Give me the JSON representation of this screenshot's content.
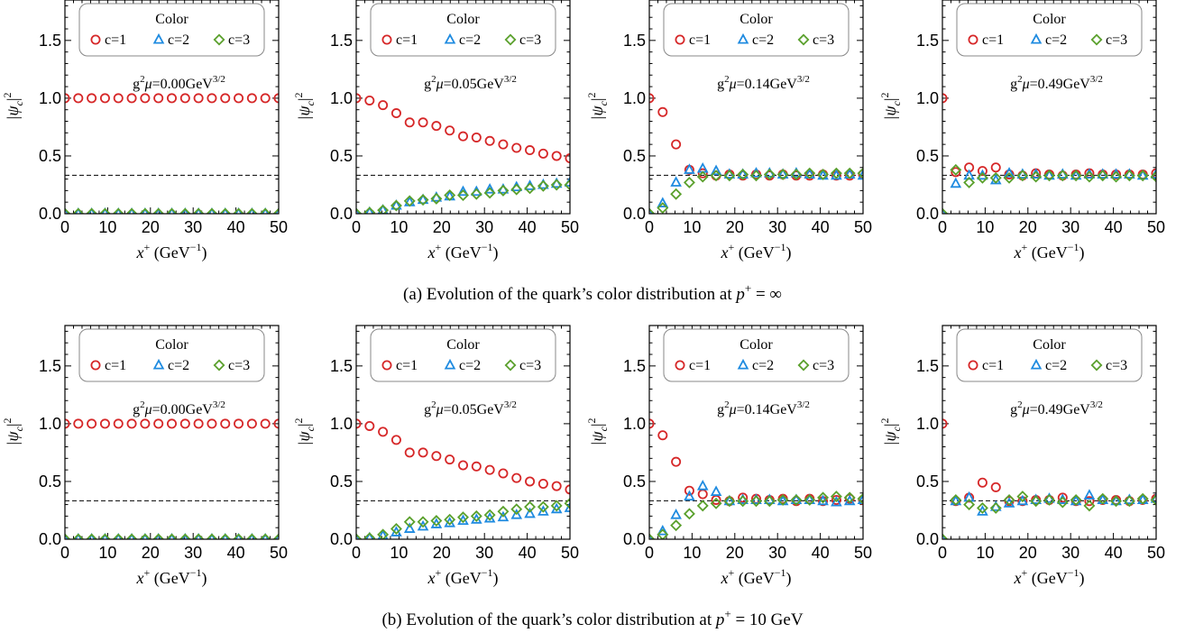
{
  "chart_data": [
    {
      "type": "scatter",
      "row": 0,
      "annotation": {
        "base": "g",
        "exp1": "2",
        "mu": "μ",
        "value": "=0.00GeV",
        "exp2": "3/2"
      },
      "xlabel": {
        "var": "x",
        "sup": "+",
        "unit": " (GeV",
        "unit_sup": "−1",
        "close": ")"
      },
      "ylabel": {
        "text": "|ψ",
        "sub": "c",
        "close": "|",
        "sup": "2"
      },
      "xlim": [
        0,
        50
      ],
      "ylim": [
        0,
        1.85
      ],
      "xticks": [
        "0",
        "10",
        "20",
        "30",
        "40",
        "50"
      ],
      "yticks": [
        "0.0",
        "0.5",
        "1.0",
        "1.5"
      ],
      "reference_line": 0.333,
      "x": [
        0,
        3.125,
        6.25,
        9.375,
        12.5,
        15.625,
        18.75,
        21.875,
        25,
        28.125,
        31.25,
        34.375,
        37.5,
        40.625,
        43.75,
        46.875,
        50
      ],
      "series": [
        {
          "name": "c=1",
          "marker": "circle",
          "color": "#d62728",
          "values": [
            1,
            1,
            1,
            1,
            1,
            1,
            1,
            1,
            1,
            1,
            1,
            1,
            1,
            1,
            1,
            1,
            1
          ]
        },
        {
          "name": "c=2",
          "marker": "triangle",
          "color": "#1f8be0",
          "values": [
            0,
            0,
            0,
            0,
            0,
            0,
            0,
            0,
            0,
            0,
            0,
            0,
            0,
            0,
            0,
            0,
            0
          ]
        },
        {
          "name": "c=3",
          "marker": "diamond",
          "color": "#5aa02c",
          "values": [
            0,
            0,
            0,
            0,
            0,
            0,
            0,
            0,
            0,
            0,
            0,
            0,
            0,
            0,
            0,
            0,
            0
          ]
        }
      ]
    },
    {
      "type": "scatter",
      "row": 0,
      "annotation": {
        "base": "g",
        "exp1": "2",
        "mu": "μ",
        "value": "=0.05GeV",
        "exp2": "3/2"
      },
      "xlabel": {
        "var": "x",
        "sup": "+",
        "unit": " (GeV",
        "unit_sup": "−1",
        "close": ")"
      },
      "ylabel": {
        "text": "|ψ",
        "sub": "c",
        "close": "|",
        "sup": "2"
      },
      "xlim": [
        0,
        50
      ],
      "ylim": [
        0,
        1.85
      ],
      "xticks": [
        "0",
        "10",
        "20",
        "30",
        "40",
        "50"
      ],
      "yticks": [
        "0.0",
        "0.5",
        "1.0",
        "1.5"
      ],
      "reference_line": 0.333,
      "x": [
        0,
        3.125,
        6.25,
        9.375,
        12.5,
        15.625,
        18.75,
        21.875,
        25,
        28.125,
        31.25,
        34.375,
        37.5,
        40.625,
        43.75,
        46.875,
        50
      ],
      "series": [
        {
          "name": "c=1",
          "marker": "circle",
          "color": "#d62728",
          "values": [
            1.0,
            0.98,
            0.94,
            0.87,
            0.79,
            0.79,
            0.76,
            0.72,
            0.67,
            0.66,
            0.63,
            0.6,
            0.57,
            0.55,
            0.52,
            0.5,
            0.48
          ]
        },
        {
          "name": "c=2",
          "marker": "triangle",
          "color": "#1f8be0",
          "values": [
            0.0,
            0.01,
            0.03,
            0.07,
            0.1,
            0.12,
            0.14,
            0.15,
            0.19,
            0.19,
            0.21,
            0.21,
            0.23,
            0.24,
            0.25,
            0.26,
            0.27
          ]
        },
        {
          "name": "c=3",
          "marker": "diamond",
          "color": "#5aa02c",
          "values": [
            0.0,
            0.01,
            0.03,
            0.07,
            0.11,
            0.12,
            0.13,
            0.16,
            0.16,
            0.17,
            0.18,
            0.2,
            0.21,
            0.22,
            0.24,
            0.25,
            0.25
          ]
        }
      ]
    },
    {
      "type": "scatter",
      "row": 0,
      "annotation": {
        "base": "g",
        "exp1": "2",
        "mu": "μ",
        "value": "=0.14GeV",
        "exp2": "3/2"
      },
      "xlabel": {
        "var": "x",
        "sup": "+",
        "unit": " (GeV",
        "unit_sup": "−1",
        "close": ")"
      },
      "ylabel": {
        "text": "|ψ",
        "sub": "c",
        "close": "|",
        "sup": "2"
      },
      "xlim": [
        0,
        50
      ],
      "ylim": [
        0,
        1.85
      ],
      "xticks": [
        "0",
        "10",
        "20",
        "30",
        "40",
        "50"
      ],
      "yticks": [
        "0.0",
        "0.5",
        "1.0",
        "1.5"
      ],
      "reference_line": 0.333,
      "x": [
        0,
        3.125,
        6.25,
        9.375,
        12.5,
        15.625,
        18.75,
        21.875,
        25,
        28.125,
        31.25,
        34.375,
        37.5,
        40.625,
        43.75,
        46.875,
        50
      ],
      "series": [
        {
          "name": "c=1",
          "marker": "circle",
          "color": "#d62728",
          "values": [
            1.0,
            0.88,
            0.6,
            0.38,
            0.35,
            0.33,
            0.34,
            0.33,
            0.34,
            0.33,
            0.34,
            0.33,
            0.33,
            0.34,
            0.33,
            0.33,
            0.34
          ]
        },
        {
          "name": "c=2",
          "marker": "triangle",
          "color": "#1f8be0",
          "values": [
            0.0,
            0.09,
            0.27,
            0.38,
            0.39,
            0.37,
            0.34,
            0.34,
            0.35,
            0.35,
            0.34,
            0.35,
            0.34,
            0.33,
            0.33,
            0.34,
            0.33
          ]
        },
        {
          "name": "c=3",
          "marker": "diamond",
          "color": "#5aa02c",
          "values": [
            0.0,
            0.05,
            0.17,
            0.27,
            0.32,
            0.33,
            0.33,
            0.34,
            0.33,
            0.34,
            0.34,
            0.34,
            0.35,
            0.34,
            0.35,
            0.35,
            0.35
          ]
        }
      ]
    },
    {
      "type": "scatter",
      "row": 0,
      "annotation": {
        "base": "g",
        "exp1": "2",
        "mu": "μ",
        "value": "=0.49GeV",
        "exp2": "3/2"
      },
      "xlabel": {
        "var": "x",
        "sup": "+",
        "unit": " (GeV",
        "unit_sup": "−1",
        "close": ")"
      },
      "ylabel": {
        "text": "|ψ",
        "sub": "c",
        "close": "|",
        "sup": "2"
      },
      "xlim": [
        0,
        50
      ],
      "ylim": [
        0,
        1.85
      ],
      "xticks": [
        "0",
        "10",
        "20",
        "30",
        "40",
        "50"
      ],
      "yticks": [
        "0.0",
        "0.5",
        "1.0",
        "1.5"
      ],
      "reference_line": 0.333,
      "x": [
        0,
        3.125,
        6.25,
        9.375,
        12.5,
        15.625,
        18.75,
        21.875,
        25,
        28.125,
        31.25,
        34.375,
        37.5,
        40.625,
        43.75,
        46.875,
        50
      ],
      "series": [
        {
          "name": "c=1",
          "marker": "circle",
          "color": "#d62728",
          "values": [
            1.0,
            0.36,
            0.4,
            0.37,
            0.4,
            0.34,
            0.33,
            0.35,
            0.34,
            0.33,
            0.34,
            0.35,
            0.34,
            0.34,
            0.34,
            0.34,
            0.35
          ]
        },
        {
          "name": "c=2",
          "marker": "triangle",
          "color": "#1f8be0",
          "values": [
            0.0,
            0.26,
            0.33,
            0.33,
            0.29,
            0.35,
            0.34,
            0.34,
            0.33,
            0.34,
            0.33,
            0.34,
            0.34,
            0.34,
            0.34,
            0.33,
            0.34
          ]
        },
        {
          "name": "c=3",
          "marker": "diamond",
          "color": "#5aa02c",
          "values": [
            0.0,
            0.38,
            0.27,
            0.31,
            0.31,
            0.31,
            0.33,
            0.32,
            0.33,
            0.33,
            0.33,
            0.32,
            0.33,
            0.32,
            0.33,
            0.33,
            0.32
          ]
        }
      ]
    },
    {
      "type": "scatter",
      "row": 1,
      "annotation": {
        "base": "g",
        "exp1": "2",
        "mu": "μ",
        "value": "=0.00GeV",
        "exp2": "3/2"
      },
      "xlabel": {
        "var": "x",
        "sup": "+",
        "unit": " (GeV",
        "unit_sup": "−1",
        "close": ")"
      },
      "ylabel": {
        "text": "|ψ",
        "sub": "c",
        "close": "|",
        "sup": "2"
      },
      "xlim": [
        0,
        50
      ],
      "ylim": [
        0,
        1.85
      ],
      "xticks": [
        "0",
        "10",
        "20",
        "30",
        "40",
        "50"
      ],
      "yticks": [
        "0.0",
        "0.5",
        "1.0",
        "1.5"
      ],
      "reference_line": 0.333,
      "x": [
        0,
        3.125,
        6.25,
        9.375,
        12.5,
        15.625,
        18.75,
        21.875,
        25,
        28.125,
        31.25,
        34.375,
        37.5,
        40.625,
        43.75,
        46.875,
        50
      ],
      "series": [
        {
          "name": "c=1",
          "marker": "circle",
          "color": "#d62728",
          "values": [
            1,
            1,
            1,
            1,
            1,
            1,
            1,
            1,
            1,
            1,
            1,
            1,
            1,
            1,
            1,
            1,
            1
          ]
        },
        {
          "name": "c=2",
          "marker": "triangle",
          "color": "#1f8be0",
          "values": [
            0,
            0,
            0,
            0,
            0,
            0,
            0,
            0,
            0,
            0,
            0,
            0,
            0,
            0,
            0,
            0,
            0
          ]
        },
        {
          "name": "c=3",
          "marker": "diamond",
          "color": "#5aa02c",
          "values": [
            0,
            0,
            0,
            0,
            0,
            0,
            0,
            0,
            0,
            0,
            0,
            0,
            0,
            0,
            0,
            0,
            0
          ]
        }
      ]
    },
    {
      "type": "scatter",
      "row": 1,
      "annotation": {
        "base": "g",
        "exp1": "2",
        "mu": "μ",
        "value": "=0.05GeV",
        "exp2": "3/2"
      },
      "xlabel": {
        "var": "x",
        "sup": "+",
        "unit": " (GeV",
        "unit_sup": "−1",
        "close": ")"
      },
      "ylabel": {
        "text": "|ψ",
        "sub": "c",
        "close": "|",
        "sup": "2"
      },
      "xlim": [
        0,
        50
      ],
      "ylim": [
        0,
        1.85
      ],
      "xticks": [
        "0",
        "10",
        "20",
        "30",
        "40",
        "50"
      ],
      "yticks": [
        "0.0",
        "0.5",
        "1.0",
        "1.5"
      ],
      "reference_line": 0.333,
      "x": [
        0,
        3.125,
        6.25,
        9.375,
        12.5,
        15.625,
        18.75,
        21.875,
        25,
        28.125,
        31.25,
        34.375,
        37.5,
        40.625,
        43.75,
        46.875,
        50
      ],
      "series": [
        {
          "name": "c=1",
          "marker": "circle",
          "color": "#d62728",
          "values": [
            1.0,
            0.98,
            0.93,
            0.86,
            0.75,
            0.75,
            0.72,
            0.69,
            0.64,
            0.63,
            0.6,
            0.57,
            0.53,
            0.5,
            0.48,
            0.46,
            0.43
          ]
        },
        {
          "name": "c=2",
          "marker": "triangle",
          "color": "#1f8be0",
          "values": [
            0.0,
            0.01,
            0.03,
            0.06,
            0.09,
            0.11,
            0.13,
            0.14,
            0.16,
            0.17,
            0.18,
            0.19,
            0.21,
            0.22,
            0.24,
            0.26,
            0.27
          ]
        },
        {
          "name": "c=3",
          "marker": "diamond",
          "color": "#5aa02c",
          "values": [
            0.0,
            0.01,
            0.04,
            0.09,
            0.15,
            0.15,
            0.16,
            0.17,
            0.19,
            0.2,
            0.21,
            0.24,
            0.26,
            0.28,
            0.28,
            0.29,
            0.31
          ]
        }
      ]
    },
    {
      "type": "scatter",
      "row": 1,
      "annotation": {
        "base": "g",
        "exp1": "2",
        "mu": "μ",
        "value": "=0.14GeV",
        "exp2": "3/2"
      },
      "xlabel": {
        "var": "x",
        "sup": "+",
        "unit": " (GeV",
        "unit_sup": "−1",
        "close": ")"
      },
      "ylabel": {
        "text": "|ψ",
        "sub": "c",
        "close": "|",
        "sup": "2"
      },
      "xlim": [
        0,
        50
      ],
      "ylim": [
        0,
        1.85
      ],
      "xticks": [
        "0",
        "10",
        "20",
        "30",
        "40",
        "50"
      ],
      "yticks": [
        "0.0",
        "0.5",
        "1.0",
        "1.5"
      ],
      "reference_line": 0.333,
      "x": [
        0,
        3.125,
        6.25,
        9.375,
        12.5,
        15.625,
        18.75,
        21.875,
        25,
        28.125,
        31.25,
        34.375,
        37.5,
        40.625,
        43.75,
        46.875,
        50
      ],
      "series": [
        {
          "name": "c=1",
          "marker": "circle",
          "color": "#d62728",
          "values": [
            1.0,
            0.9,
            0.67,
            0.42,
            0.39,
            0.34,
            0.33,
            0.36,
            0.35,
            0.34,
            0.35,
            0.33,
            0.35,
            0.33,
            0.34,
            0.35,
            0.34
          ]
        },
        {
          "name": "c=2",
          "marker": "triangle",
          "color": "#1f8be0",
          "values": [
            0.0,
            0.07,
            0.21,
            0.37,
            0.46,
            0.41,
            0.33,
            0.34,
            0.34,
            0.34,
            0.33,
            0.34,
            0.34,
            0.33,
            0.32,
            0.33,
            0.34
          ]
        },
        {
          "name": "c=3",
          "marker": "diamond",
          "color": "#5aa02c",
          "values": [
            0.0,
            0.04,
            0.12,
            0.22,
            0.29,
            0.31,
            0.33,
            0.33,
            0.33,
            0.33,
            0.34,
            0.34,
            0.34,
            0.36,
            0.37,
            0.36,
            0.35
          ]
        }
      ]
    },
    {
      "type": "scatter",
      "row": 1,
      "annotation": {
        "base": "g",
        "exp1": "2",
        "mu": "μ",
        "value": "=0.49GeV",
        "exp2": "3/2"
      },
      "xlabel": {
        "var": "x",
        "sup": "+",
        "unit": " (GeV",
        "unit_sup": "−1",
        "close": ")"
      },
      "ylabel": {
        "text": "|ψ",
        "sub": "c",
        "close": "|",
        "sup": "2"
      },
      "xlim": [
        0,
        50
      ],
      "ylim": [
        0,
        1.85
      ],
      "xticks": [
        "0",
        "10",
        "20",
        "30",
        "40",
        "50"
      ],
      "yticks": [
        "0.0",
        "0.5",
        "1.0",
        "1.5"
      ],
      "reference_line": 0.333,
      "x": [
        0,
        3.125,
        6.25,
        9.375,
        12.5,
        15.625,
        18.75,
        21.875,
        25,
        28.125,
        31.25,
        34.375,
        37.5,
        40.625,
        43.75,
        46.875,
        50
      ],
      "series": [
        {
          "name": "c=1",
          "marker": "circle",
          "color": "#d62728",
          "values": [
            1.0,
            0.33,
            0.36,
            0.49,
            0.45,
            0.33,
            0.33,
            0.34,
            0.34,
            0.36,
            0.33,
            0.33,
            0.34,
            0.34,
            0.33,
            0.34,
            0.35
          ]
        },
        {
          "name": "c=2",
          "marker": "triangle",
          "color": "#1f8be0",
          "values": [
            0.0,
            0.33,
            0.36,
            0.24,
            0.28,
            0.31,
            0.33,
            0.34,
            0.35,
            0.34,
            0.33,
            0.38,
            0.34,
            0.33,
            0.34,
            0.34,
            0.35
          ]
        },
        {
          "name": "c=3",
          "marker": "diamond",
          "color": "#5aa02c",
          "values": [
            0.0,
            0.34,
            0.3,
            0.27,
            0.27,
            0.34,
            0.37,
            0.33,
            0.34,
            0.32,
            0.34,
            0.29,
            0.35,
            0.33,
            0.33,
            0.35,
            0.34
          ]
        }
      ]
    }
  ],
  "legend": {
    "title": "Color",
    "entries": [
      "c=1",
      "c=2",
      "c=3"
    ]
  },
  "captions": [
    {
      "text": "(a) Evolution of the quark’s color distribution at ",
      "var": "p",
      "sup": "+",
      "rest": " = ∞"
    },
    {
      "text": "(b) Evolution of the quark’s color distribution at ",
      "var": "p",
      "sup": "+",
      "rest": " = 10 GeV"
    }
  ]
}
